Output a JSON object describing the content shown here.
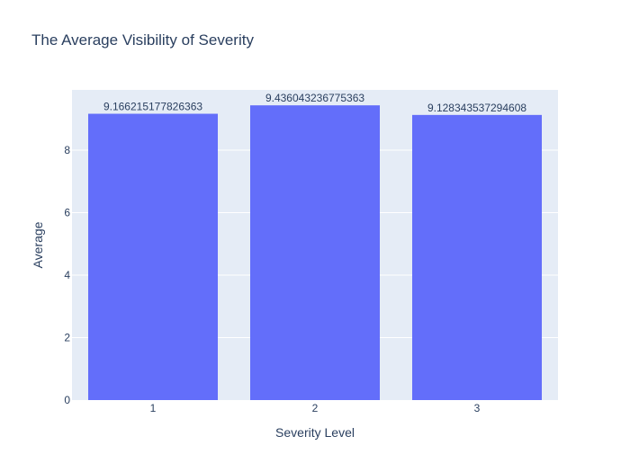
{
  "chart_data": {
    "type": "bar",
    "title": "The Average Visibility of Severity",
    "xlabel": "Severity Level",
    "ylabel": "Average",
    "categories": [
      "1",
      "2",
      "3"
    ],
    "values": [
      9.166215177826363,
      9.436043236775363,
      9.128343537294608
    ],
    "value_labels": [
      "9.166215177826363",
      "9.436043236775363",
      "9.128343537294608"
    ],
    "ylim": [
      0,
      9.93
    ],
    "yticks": [
      0,
      2,
      4,
      6,
      8
    ],
    "grid": true,
    "legend": "none",
    "colors": {
      "bar": "#636efa",
      "plot_bg": "#e5ecf6",
      "grid": "#ffffff",
      "text": "#2a3f5f"
    }
  }
}
